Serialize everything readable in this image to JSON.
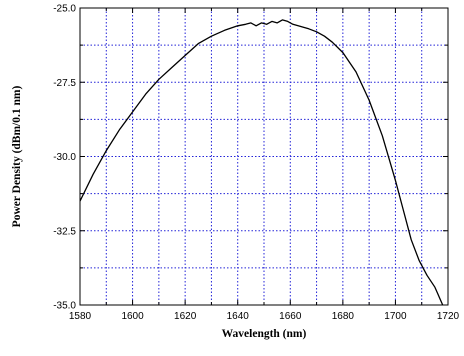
{
  "chart_data": {
    "type": "line",
    "title": "",
    "xlabel": "Wavelength (nm)",
    "ylabel": "Power Density (dBm/0.1 nm)",
    "xlim": [
      1580,
      1720
    ],
    "ylim": [
      -35.0,
      -25.0
    ],
    "xticks": [
      1580,
      1600,
      1620,
      1640,
      1660,
      1680,
      1700,
      1720
    ],
    "yticks": [
      -35.0,
      -32.5,
      -30.0,
      -27.5,
      -25.0
    ],
    "xtick_labels": [
      "1580",
      "1600",
      "1620",
      "1640",
      "1660",
      "1680",
      "1700",
      "1720"
    ],
    "ytick_labels": [
      "-35.0",
      "-32.5",
      "-30.0",
      "-27.5",
      "-25.0"
    ],
    "grid": true,
    "grid_color": "#2323d8",
    "line_color": "#000000",
    "series": [
      {
        "x": [
          1580,
          1585,
          1590,
          1595,
          1600,
          1605,
          1610,
          1615,
          1620,
          1625,
          1630,
          1635,
          1640,
          1643,
          1645,
          1647,
          1649,
          1651,
          1653,
          1655,
          1657,
          1659,
          1661,
          1663,
          1665,
          1667,
          1670,
          1673,
          1676,
          1680,
          1685,
          1690,
          1695,
          1700,
          1703,
          1706,
          1709,
          1712,
          1715,
          1716,
          1717,
          1718
        ],
        "y": [
          -31.5,
          -30.6,
          -29.8,
          -29.1,
          -28.5,
          -27.9,
          -27.4,
          -27.0,
          -26.6,
          -26.2,
          -25.95,
          -25.75,
          -25.6,
          -25.55,
          -25.5,
          -25.6,
          -25.5,
          -25.55,
          -25.45,
          -25.5,
          -25.4,
          -25.45,
          -25.55,
          -25.6,
          -25.65,
          -25.7,
          -25.8,
          -25.95,
          -26.15,
          -26.5,
          -27.15,
          -28.1,
          -29.3,
          -30.8,
          -31.8,
          -32.8,
          -33.5,
          -34.0,
          -34.4,
          -34.6,
          -34.8,
          -35.0
        ]
      }
    ]
  }
}
